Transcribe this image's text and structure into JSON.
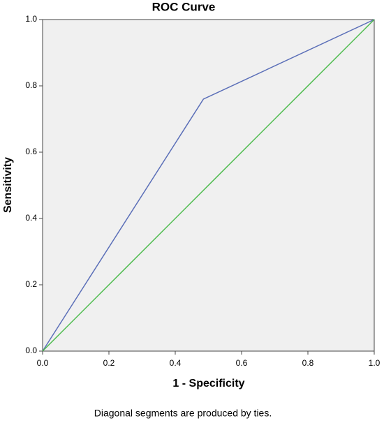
{
  "chart_data": {
    "type": "line",
    "title": "ROC Curve",
    "x_label": "1 - Specificity",
    "y_label": "Sensitivity",
    "footnote": "Diagonal segments are produced by ties.",
    "series": [
      {
        "color": "#5b6fb8",
        "x": [
          0,
          0.485,
          1
        ],
        "values": [
          0,
          0.76,
          1
        ]
      },
      {
        "color": "#4cbb4c",
        "x": [
          0,
          1
        ],
        "values": [
          0,
          1
        ]
      }
    ],
    "xlim": [
      0,
      1
    ],
    "ylim": [
      0,
      1
    ],
    "xticks": [
      {
        "value": 0,
        "label": "0.0"
      },
      0.2,
      0.4,
      0.6,
      0.8,
      {
        "value": 1,
        "label": "1.0"
      }
    ],
    "yticks": [
      {
        "value": 0,
        "label": "0.0"
      },
      0.2,
      0.4,
      0.6,
      0.8,
      {
        "value": 1,
        "label": "1.0"
      }
    ],
    "grid": false
  }
}
